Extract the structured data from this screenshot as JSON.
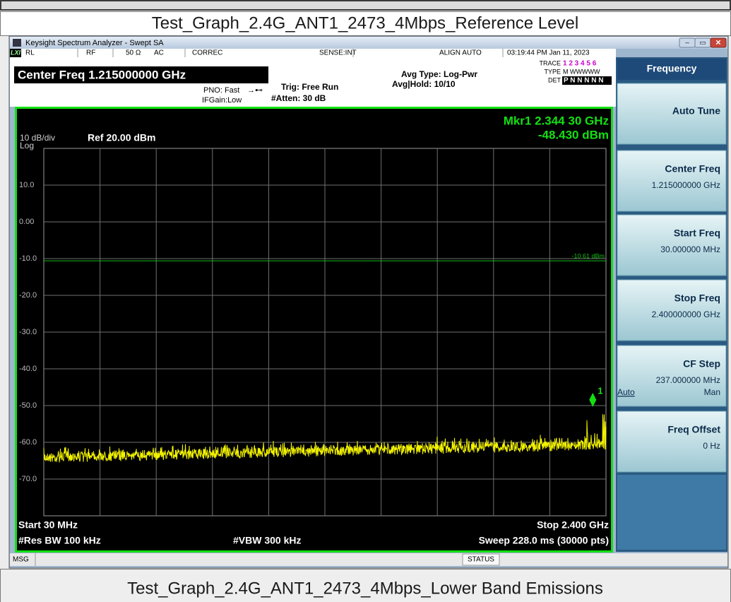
{
  "captions": {
    "top": "Test_Graph_2.4G_ANT1_2473_4Mbps_Reference Level",
    "bottom": "Test_Graph_2.4G_ANT1_2473_4Mbps_Lower Band Emissions"
  },
  "window": {
    "title": "Keysight Spectrum Analyzer - Swept SA"
  },
  "status_bar": {
    "rl": "RL",
    "rf": "RF",
    "impedance": "50 Ω",
    "coupling": "AC",
    "correc": "CORREC",
    "sense": "SENSE:INT",
    "align": "ALIGN AUTO",
    "datetime": "03:19:44 PM Jan 11, 2023"
  },
  "header": {
    "center_freq": "Center Freq 1.215000000 GHz",
    "pno": "PNO: Fast",
    "ifgain": "IFGain:Low",
    "trig": "Trig: Free Run",
    "atten": "#Atten: 30 dB",
    "avg_type": "Avg Type: Log-Pwr",
    "avg_hold": "Avg|Hold: 10/10",
    "trace_label": "TRACE",
    "trace": "1 2 3 4 5 6",
    "type_label": "TYPE",
    "type": "M WWWWW",
    "det_label": "DET",
    "det": "P N N N N N"
  },
  "scale": {
    "per_div": "10 dB/div",
    "mode": "Log",
    "ref": "Ref 20.00 dBm",
    "ylim": [
      -80,
      20
    ],
    "yticks": [
      {
        "value": 10,
        "label": "10.0"
      },
      {
        "value": 0,
        "label": "0.00"
      },
      {
        "value": -10,
        "label": "-10.0"
      },
      {
        "value": -20,
        "label": "-20.0"
      },
      {
        "value": -30,
        "label": "-30.0"
      },
      {
        "value": -40,
        "label": "-40.0"
      },
      {
        "value": -50,
        "label": "-50.0"
      },
      {
        "value": -60,
        "label": "-60.0"
      },
      {
        "value": -70,
        "label": "-70.0"
      }
    ],
    "xlim": [
      0.03,
      2.4
    ]
  },
  "marker": {
    "readout_freq": "Mkr1 2.344 30 GHz",
    "readout_level": "-48.430 dBm",
    "label": "1",
    "x": 2.3443,
    "level": -48.43
  },
  "display_line": {
    "value": -10.61,
    "label": "-10.61 dBm"
  },
  "footer": {
    "start": "Start 30 MHz",
    "stop": "Stop 2.400 GHz",
    "rbw": "#Res BW 100 kHz",
    "vbw": "#VBW 300 kHz",
    "sweep": "Sweep  228.0 ms (30000 pts)"
  },
  "softkeys": {
    "menu": "Frequency",
    "keys": [
      {
        "label": "Auto Tune"
      },
      {
        "label": "Center Freq",
        "value": "1.215000000 GHz"
      },
      {
        "label": "Start Freq",
        "value": "30.000000 MHz"
      },
      {
        "label": "Stop Freq",
        "value": "2.400000000 GHz"
      },
      {
        "label": "CF Step",
        "value": "237.000000 MHz",
        "left": "Auto",
        "right": "Man"
      },
      {
        "label": "Freq Offset",
        "value": "0 Hz"
      }
    ]
  },
  "bottom_bar": {
    "msg": "MSG",
    "status": "STATUS"
  }
}
